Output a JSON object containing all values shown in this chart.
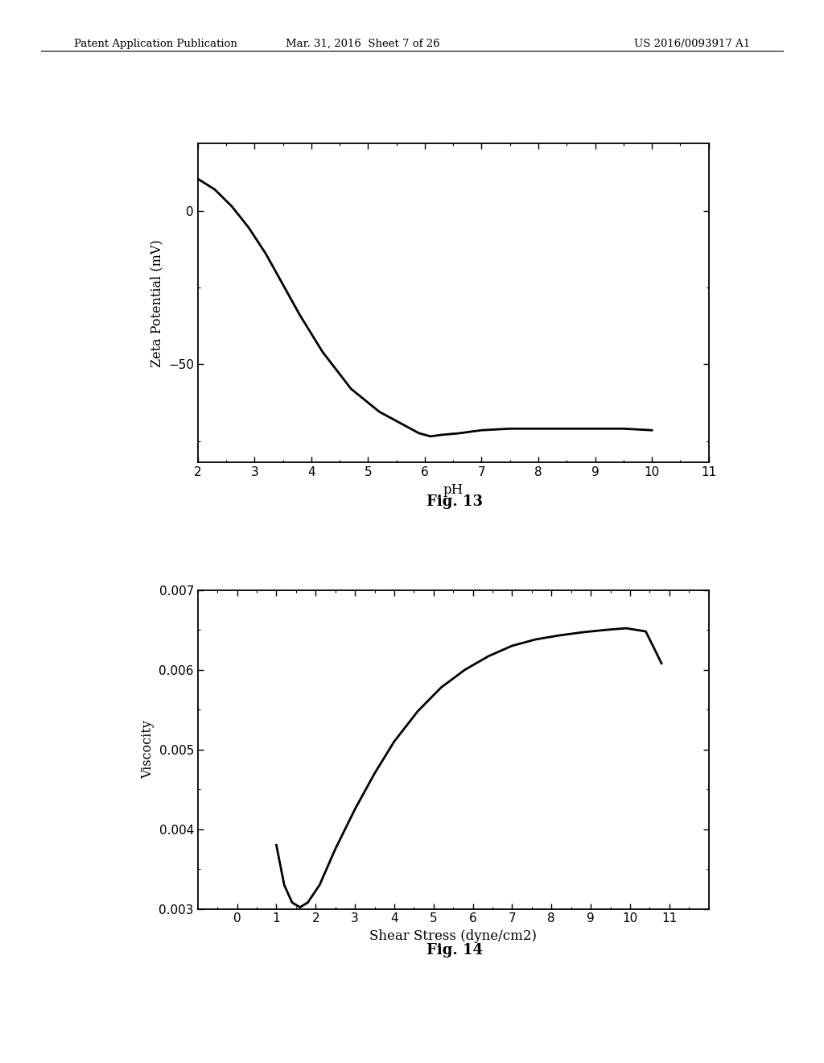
{
  "fig13": {
    "x": [
      2.0,
      2.3,
      2.6,
      2.9,
      3.2,
      3.5,
      3.8,
      4.2,
      4.7,
      5.2,
      5.6,
      5.9,
      6.1,
      6.3,
      6.6,
      7.0,
      7.5,
      8.0,
      8.5,
      9.0,
      9.5,
      10.0
    ],
    "y": [
      10.5,
      7.0,
      1.5,
      -5.5,
      -14.0,
      -24.0,
      -34.0,
      -46.0,
      -58.0,
      -65.5,
      -69.5,
      -72.5,
      -73.5,
      -73.0,
      -72.5,
      -71.5,
      -71.0,
      -71.0,
      -71.0,
      -71.0,
      -71.0,
      -71.5
    ],
    "xlabel": "pH",
    "ylabel": "Zeta Potential (mV)",
    "fig_label": "Fig. 13",
    "xlim": [
      2,
      11
    ],
    "ylim": [
      -82,
      22
    ],
    "xticks": [
      2,
      3,
      4,
      5,
      6,
      7,
      8,
      9,
      10,
      11
    ],
    "yticks": [
      0,
      -50
    ]
  },
  "fig14": {
    "x": [
      1.0,
      1.2,
      1.4,
      1.6,
      1.8,
      2.1,
      2.5,
      3.0,
      3.5,
      4.0,
      4.6,
      5.2,
      5.8,
      6.4,
      7.0,
      7.6,
      8.2,
      8.8,
      9.4,
      9.9,
      10.4,
      10.8
    ],
    "y": [
      0.0038,
      0.0033,
      0.00308,
      0.00302,
      0.00308,
      0.0033,
      0.00375,
      0.00425,
      0.0047,
      0.0051,
      0.00548,
      0.00578,
      0.006,
      0.00617,
      0.0063,
      0.00638,
      0.00643,
      0.00647,
      0.0065,
      0.00652,
      0.00648,
      0.00608
    ],
    "xlabel": "Shear Stress (dyne/cm2)",
    "ylabel": "Viscocity",
    "fig_label": "Fig. 14",
    "xlim": [
      -1,
      12
    ],
    "ylim": [
      0.003,
      0.007
    ],
    "xticks": [
      0,
      1,
      2,
      3,
      4,
      5,
      6,
      7,
      8,
      9,
      10,
      11
    ],
    "yticks": [
      0.003,
      0.004,
      0.005,
      0.006,
      0.007
    ]
  },
  "header_left": "Patent Application Publication",
  "header_mid": "Mar. 31, 2016  Sheet 7 of 26",
  "header_right": "US 2016/0093917 A1",
  "background_color": "#ffffff",
  "line_color": "#000000",
  "line_width": 2.0
}
